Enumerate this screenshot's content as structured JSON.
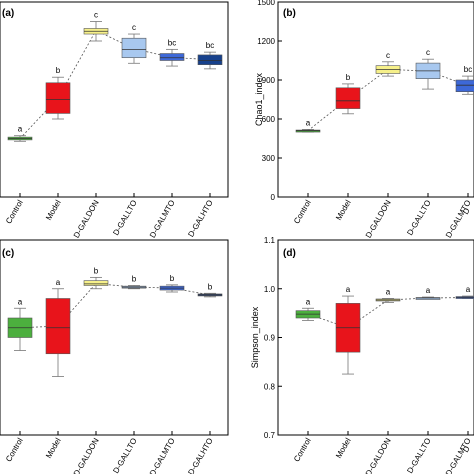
{
  "chart_data": [
    {
      "panel": "(a)",
      "type": "box",
      "ylabel": "",
      "ylim": [
        300,
        1000
      ],
      "yticks": [],
      "categories": [
        "Control",
        "Model",
        "D-GALDON",
        "D-GALLTO",
        "D-GALMTO",
        "D-GALHTO"
      ],
      "cat_labels": [
        "Control",
        "Model",
        "D-GALDON",
        "D-GALLTO",
        "D-GALMTO",
        "D-GALHTO"
      ],
      "boxes": [
        {
          "min": 500,
          "q1": 505,
          "median": 510,
          "q3": 515,
          "max": 520,
          "mean": 510
        },
        {
          "min": 580,
          "q1": 600,
          "median": 650,
          "q3": 710,
          "max": 730,
          "mean": 655
        },
        {
          "min": 860,
          "q1": 885,
          "median": 895,
          "q3": 905,
          "max": 930,
          "mean": 898
        },
        {
          "min": 780,
          "q1": 800,
          "median": 830,
          "q3": 870,
          "max": 885,
          "mean": 832
        },
        {
          "min": 770,
          "q1": 790,
          "median": 800,
          "q3": 815,
          "max": 830,
          "mean": 801
        },
        {
          "min": 760,
          "q1": 775,
          "median": 790,
          "q3": 810,
          "max": 820,
          "mean": 793
        }
      ],
      "sig_letters": [
        "a",
        "b",
        "c",
        "c",
        "bc",
        "bc"
      ],
      "colors": [
        "#4caf3e",
        "#e8141b",
        "#f6f08a",
        "#a8c8ef",
        "#3d68d8",
        "#17418c"
      ]
    },
    {
      "panel": "(b)",
      "type": "box",
      "ylabel": "Chao1_index",
      "ylim": [
        0,
        1500
      ],
      "yticks": [
        0,
        300,
        600,
        900,
        1200,
        1500
      ],
      "categories": [
        "Control",
        "Model",
        "D-GALDON",
        "D-GALLTO",
        "D-GALMTO"
      ],
      "cat_labels": [
        "Control",
        "Model",
        "D-GALDON",
        "D-GALLTO",
        "D-GALMTO"
      ],
      "boxes": [
        {
          "min": 500,
          "q1": 505,
          "median": 510,
          "q3": 515,
          "max": 520,
          "mean": 510
        },
        {
          "min": 640,
          "q1": 680,
          "median": 740,
          "q3": 840,
          "max": 870,
          "mean": 755
        },
        {
          "min": 930,
          "q1": 950,
          "median": 980,
          "q3": 1010,
          "max": 1040,
          "mean": 982
        },
        {
          "min": 830,
          "q1": 910,
          "median": 970,
          "q3": 1030,
          "max": 1060,
          "mean": 968
        },
        {
          "min": 790,
          "q1": 810,
          "median": 860,
          "q3": 900,
          "max": 930,
          "mean": 858
        }
      ],
      "sig_letters": [
        "a",
        "b",
        "c",
        "c",
        "bc"
      ],
      "colors": [
        "#4caf3e",
        "#e8141b",
        "#f6f08a",
        "#a8c8ef",
        "#3d68d8"
      ]
    },
    {
      "panel": "(c)",
      "type": "box",
      "ylabel": "",
      "ylim": [
        0.6,
        1.2
      ],
      "yticks": [],
      "categories": [
        "Control",
        "Model",
        "D-GALDON",
        "D-GALLTO",
        "D-GALMTO",
        "D-GALHTO"
      ],
      "cat_labels": [
        "Control",
        "Model",
        "D-GALDON",
        "D-GALLTO",
        "D-GALMTO",
        "D-GALHTO"
      ],
      "boxes": [
        {
          "min": 0.86,
          "q1": 0.9,
          "median": 0.93,
          "q3": 0.96,
          "max": 0.99,
          "mean": 0.93
        },
        {
          "min": 0.78,
          "q1": 0.85,
          "median": 0.93,
          "q3": 1.02,
          "max": 1.05,
          "mean": 0.935
        },
        {
          "min": 1.05,
          "q1": 1.06,
          "median": 1.065,
          "q3": 1.075,
          "max": 1.085,
          "mean": 1.066
        },
        {
          "min": 1.05,
          "q1": 1.052,
          "median": 1.055,
          "q3": 1.058,
          "max": 1.06,
          "mean": 1.055
        },
        {
          "min": 1.04,
          "q1": 1.046,
          "median": 1.052,
          "q3": 1.058,
          "max": 1.062,
          "mean": 1.052
        },
        {
          "min": 1.025,
          "q1": 1.028,
          "median": 1.031,
          "q3": 1.034,
          "max": 1.036,
          "mean": 1.031
        }
      ],
      "sig_letters": [
        "a",
        "a",
        "b",
        "b",
        "b",
        "b"
      ],
      "colors": [
        "#4caf3e",
        "#e8141b",
        "#f6f08a",
        "#a8c8ef",
        "#3d68d8",
        "#17418c"
      ]
    },
    {
      "panel": "(d)",
      "type": "box",
      "ylabel": "Simpson_index",
      "ylim": [
        0.7,
        1.1
      ],
      "yticks": [
        0.7,
        0.8,
        0.9,
        1.0,
        1.1
      ],
      "categories": [
        "Control",
        "Model",
        "D-GALDON",
        "D-GALLTO",
        "D-GALMTO"
      ],
      "cat_labels": [
        "Control",
        "Model",
        "D-GALDON",
        "D-GALLTO",
        "D-GALMTO"
      ],
      "boxes": [
        {
          "min": 0.935,
          "q1": 0.94,
          "median": 0.948,
          "q3": 0.955,
          "max": 0.96,
          "mean": 0.948
        },
        {
          "min": 0.825,
          "q1": 0.87,
          "median": 0.92,
          "q3": 0.97,
          "max": 0.985,
          "mean": 0.92
        },
        {
          "min": 0.972,
          "q1": 0.975,
          "median": 0.977,
          "q3": 0.979,
          "max": 0.98,
          "mean": 0.977
        },
        {
          "min": 0.979,
          "q1": 0.98,
          "median": 0.981,
          "q3": 0.982,
          "max": 0.983,
          "mean": 0.981
        },
        {
          "min": 0.98,
          "q1": 0.981,
          "median": 0.982,
          "q3": 0.984,
          "max": 0.985,
          "mean": 0.982
        }
      ],
      "sig_letters": [
        "a",
        "a",
        "a",
        "a",
        "a"
      ],
      "colors": [
        "#4caf3e",
        "#e8141b",
        "#f6f08a",
        "#a8c8ef",
        "#3d68d8"
      ]
    }
  ],
  "panel_b_cat_partial": "D",
  "panel_d_cat_partial": "D"
}
